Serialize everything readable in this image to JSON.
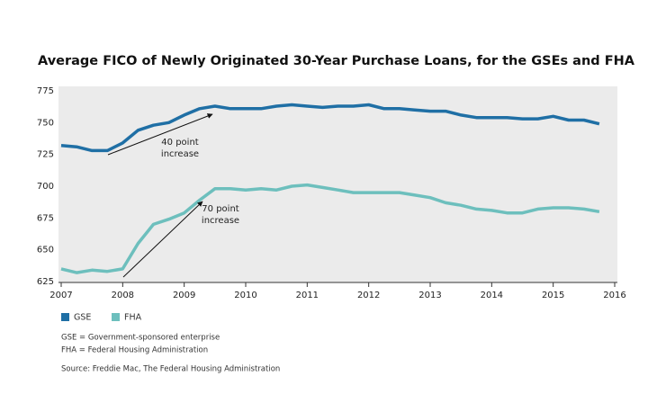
{
  "chart_data": {
    "type": "line",
    "title": "Average FICO of Newly Originated 30-Year Purchase Loans, for the GSEs and FHA",
    "x": [
      2007,
      2007.25,
      2007.5,
      2007.75,
      2008,
      2008.25,
      2008.5,
      2008.75,
      2009,
      2009.25,
      2009.5,
      2009.75,
      2010,
      2010.25,
      2010.5,
      2010.75,
      2011,
      2011.25,
      2011.5,
      2011.75,
      2012,
      2012.25,
      2012.5,
      2012.75,
      2013,
      2013.25,
      2013.5,
      2013.75,
      2014,
      2014.25,
      2014.5,
      2014.75,
      2015,
      2015.25,
      2015.5,
      2015.75
    ],
    "series": [
      {
        "name": "GSE",
        "color": "#1f6fa5",
        "values": [
          732,
          731,
          728,
          728,
          734,
          744,
          748,
          750,
          756,
          761,
          763,
          761,
          761,
          761,
          763,
          764,
          763,
          762,
          763,
          763,
          764,
          761,
          761,
          760,
          759,
          759,
          756,
          754,
          754,
          754,
          753,
          753,
          755,
          752,
          752,
          749
        ]
      },
      {
        "name": "FHA",
        "color": "#6dbfbd",
        "values": [
          635,
          632,
          634,
          633,
          635,
          655,
          670,
          674,
          679,
          689,
          698,
          698,
          697,
          698,
          697,
          700,
          701,
          699,
          697,
          695,
          695,
          695,
          695,
          693,
          691,
          687,
          685,
          682,
          681,
          679,
          679,
          682,
          683,
          683,
          682,
          680
        ]
      }
    ],
    "xlim": [
      2007,
      2016
    ],
    "xticks": [
      2007,
      2008,
      2009,
      2010,
      2011,
      2012,
      2013,
      2014,
      2015,
      2016
    ],
    "ylim": [
      625,
      775
    ],
    "yticks": [
      625,
      650,
      675,
      700,
      725,
      750,
      775
    ],
    "grid": false,
    "annotations": [
      {
        "lines": [
          "40 point",
          "increase"
        ]
      },
      {
        "lines": [
          "70 point",
          "increase"
        ]
      }
    ],
    "notes": [
      "GSE = Government-sponsored enterprise",
      "FHA = Federal Housing Administration"
    ],
    "source": "Source: Freddie Mac, The Federal Housing Administration"
  }
}
